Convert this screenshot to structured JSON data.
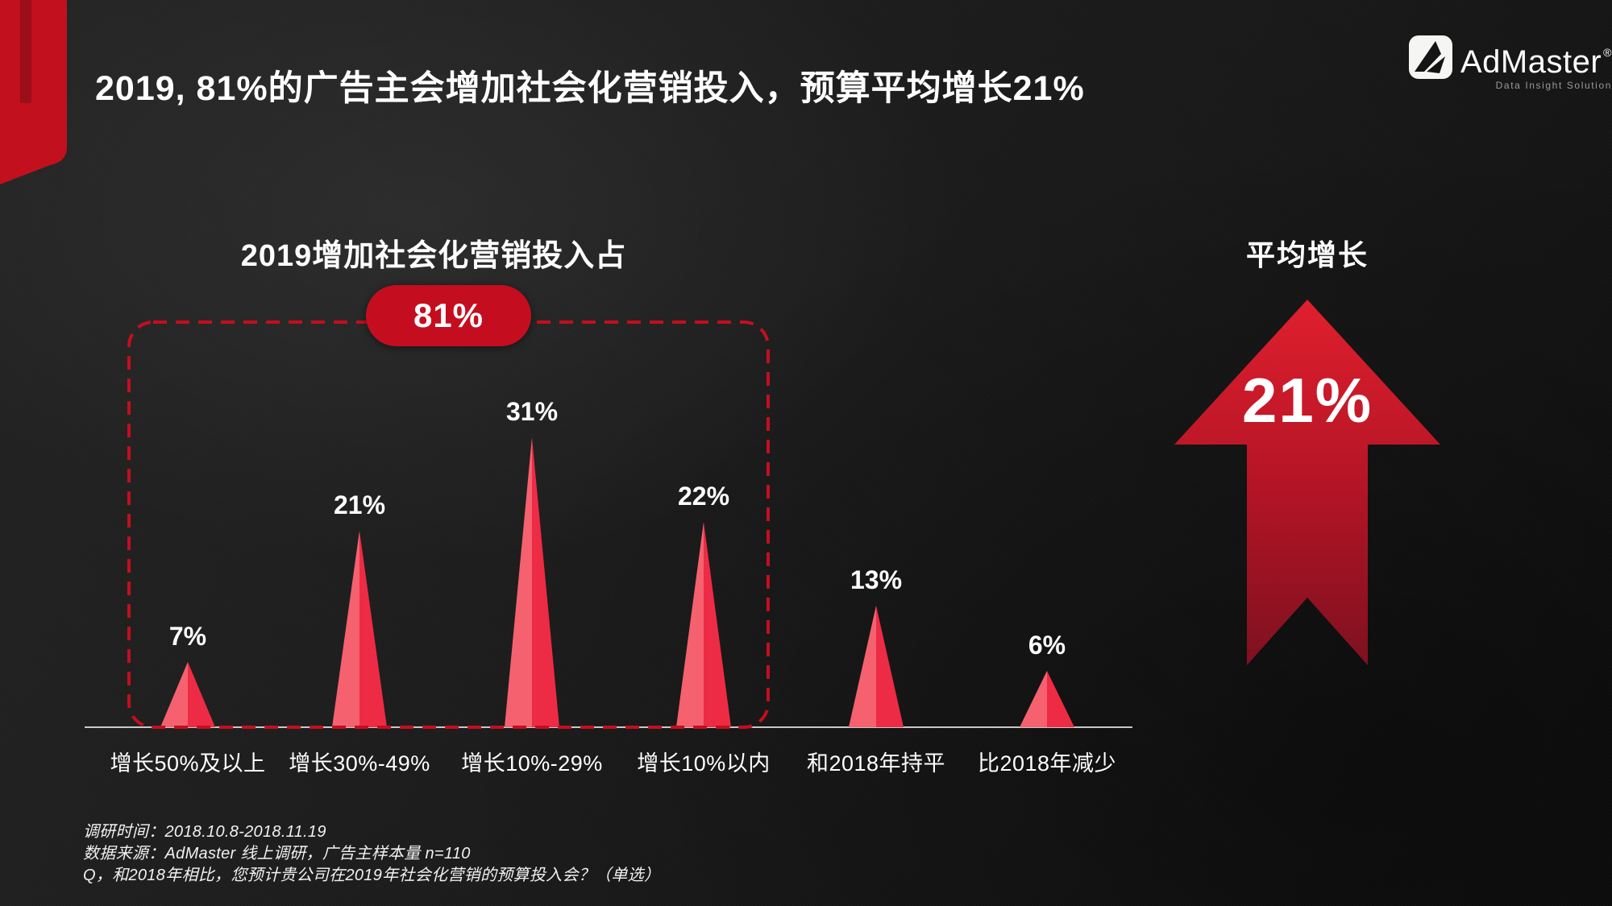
{
  "slide": {
    "title": "2019, 81%的广告主会增加社会化营销投入，预算平均增长21%"
  },
  "logo": {
    "name": "AdMaster",
    "reg": "®",
    "tagline": "Data Insight Solution"
  },
  "chart_data": {
    "type": "bar",
    "variant": "triangle-spike",
    "title": "2019增加社会化营销投入占",
    "categories": [
      "增长50%及以上",
      "增长30%-49%",
      "增长10%-29%",
      "增长10%以内",
      "和2018年持平",
      "比2018年减少"
    ],
    "values": [
      7,
      21,
      31,
      22,
      13,
      6
    ],
    "unit": "%",
    "highlight": {
      "label": "81%",
      "categories_covered": [
        "增长50%及以上",
        "增长30%-49%",
        "增长10%-29%",
        "增长10%以内"
      ]
    },
    "colors": {
      "spike_left": "#F5616F",
      "spike_right": "#EE2B45",
      "outline": "#C40E1F",
      "badge": "#C40E1F"
    },
    "ylim": [
      0,
      33
    ],
    "grid": false,
    "legend": false
  },
  "right_panel": {
    "label": "平均增长",
    "value": "21%"
  },
  "footnotes": {
    "lines": [
      "调研时间：2018.10.8-2018.11.19",
      "数据来源：AdMaster 线上调研，广告主样本量 n=110",
      "Q，和2018年相比，您预计贵公司在2019年社会化营销的预算投入会？（单选）"
    ]
  }
}
